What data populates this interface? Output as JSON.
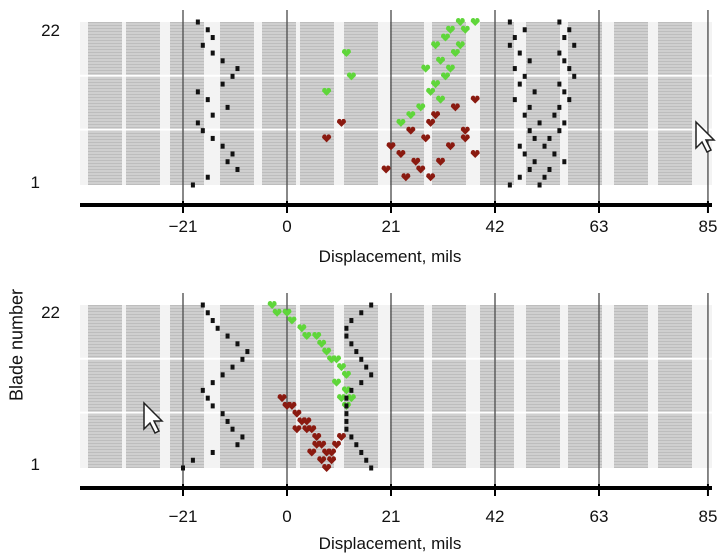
{
  "shared_ylabel": "Blade number",
  "colors": {
    "panel_fill": "#bdbdbd",
    "stripe": "#eeeeee",
    "grid_line": "#555555",
    "axis": "#000000",
    "black_series": "#111111",
    "green_series": "#5fd63a",
    "red_series": "#8a1a10"
  },
  "cursor_icon": "arrow-pointer-icon",
  "chart_data": [
    {
      "type": "scatter",
      "xlabel": "Displacement, mils",
      "ylabel": "Blade number",
      "xticks": [
        -21,
        0,
        21,
        42,
        63,
        85
      ],
      "yticks": [
        1,
        22
      ],
      "xlim": [
        -42,
        85
      ],
      "ylim": [
        1,
        22
      ],
      "grid": true,
      "series": [
        {
          "color": "black",
          "marker": "square",
          "points": [
            [
              -19,
              1
            ],
            [
              -16,
              2
            ],
            [
              -10,
              3
            ],
            [
              -12,
              4
            ],
            [
              -11,
              5
            ],
            [
              -13,
              6
            ],
            [
              -15,
              7
            ],
            [
              -17,
              8
            ],
            [
              -18,
              9
            ],
            [
              -15,
              10
            ],
            [
              -12,
              11
            ],
            [
              -16,
              12
            ],
            [
              -18,
              13
            ],
            [
              -13,
              14
            ],
            [
              -11,
              15
            ],
            [
              -10,
              16
            ],
            [
              -13,
              17
            ],
            [
              -15,
              18
            ],
            [
              -17,
              19
            ],
            [
              -15,
              20
            ],
            [
              -16,
              21
            ],
            [
              -18,
              22
            ]
          ]
        },
        {
          "color": "green",
          "marker": "heart",
          "points": [
            [
              35,
              22
            ],
            [
              38,
              22
            ],
            [
              33,
              21
            ],
            [
              36,
              21
            ],
            [
              32,
              20
            ],
            [
              35,
              19
            ],
            [
              30,
              19
            ],
            [
              34,
              18
            ],
            [
              31,
              17
            ],
            [
              33,
              16
            ],
            [
              28,
              16
            ],
            [
              32,
              15
            ],
            [
              30,
              14
            ],
            [
              29,
              13
            ],
            [
              31,
              12
            ],
            [
              27,
              11
            ],
            [
              25,
              10
            ],
            [
              23,
              9
            ]
          ]
        },
        {
          "color": "green",
          "marker": "heart",
          "points": [
            [
              12,
              18
            ],
            [
              13,
              15
            ],
            [
              8,
              13
            ]
          ]
        },
        {
          "color": "red",
          "marker": "heart",
          "points": [
            [
              11,
              9
            ],
            [
              8,
              7
            ],
            [
              30,
              10
            ],
            [
              34,
              11
            ],
            [
              38,
              12
            ],
            [
              29,
              9
            ],
            [
              36,
              8
            ],
            [
              25,
              8
            ],
            [
              28,
              7
            ],
            [
              33,
              6
            ],
            [
              21,
              6
            ],
            [
              23,
              5
            ],
            [
              26,
              4
            ],
            [
              31,
              4
            ],
            [
              27,
              3
            ],
            [
              20,
              3
            ],
            [
              24,
              2
            ],
            [
              29,
              2
            ],
            [
              36,
              7
            ],
            [
              38,
              5
            ]
          ]
        },
        {
          "color": "black",
          "marker": "square",
          "points": [
            [
              45,
              22
            ],
            [
              48,
              21
            ],
            [
              46,
              20
            ],
            [
              45,
              19
            ],
            [
              47,
              18
            ],
            [
              49,
              17
            ],
            [
              46,
              16
            ],
            [
              48,
              15
            ],
            [
              47,
              14
            ],
            [
              50,
              13
            ],
            [
              46,
              12
            ],
            [
              49,
              11
            ],
            [
              48,
              10
            ],
            [
              51,
              9
            ],
            [
              49,
              8
            ],
            [
              50,
              7
            ],
            [
              47,
              6
            ],
            [
              48,
              5
            ],
            [
              50,
              4
            ],
            [
              49,
              3
            ],
            [
              47,
              2
            ],
            [
              45,
              1
            ]
          ]
        },
        {
          "color": "black",
          "marker": "square",
          "points": [
            [
              55,
              22
            ],
            [
              57,
              21
            ],
            [
              56,
              20
            ],
            [
              58,
              19
            ],
            [
              55,
              18
            ],
            [
              56,
              17
            ],
            [
              57,
              16
            ],
            [
              58,
              15
            ],
            [
              55,
              14
            ],
            [
              56,
              13
            ],
            [
              57,
              12
            ],
            [
              55,
              11
            ],
            [
              54,
              10
            ],
            [
              56,
              9
            ],
            [
              55,
              8
            ],
            [
              53,
              7
            ],
            [
              52,
              6
            ],
            [
              54,
              5
            ],
            [
              56,
              4
            ],
            [
              53,
              3
            ],
            [
              52,
              2
            ],
            [
              51,
              1
            ]
          ]
        }
      ]
    },
    {
      "type": "scatter",
      "xlabel": "Displacement, mils",
      "ylabel": "Blade number",
      "xticks": [
        -21,
        0,
        21,
        42,
        63,
        85
      ],
      "yticks": [
        1,
        22
      ],
      "xlim": [
        -42,
        85
      ],
      "ylim": [
        1,
        22
      ],
      "grid": true,
      "series": [
        {
          "color": "black",
          "marker": "square",
          "points": [
            [
              -21,
              1
            ],
            [
              -19,
              2
            ],
            [
              -15,
              3
            ],
            [
              -10,
              4
            ],
            [
              -9,
              5
            ],
            [
              -11,
              6
            ],
            [
              -12,
              7
            ],
            [
              -13,
              8
            ],
            [
              -15,
              9
            ],
            [
              -16,
              10
            ],
            [
              -17,
              11
            ],
            [
              -15,
              12
            ],
            [
              -13,
              13
            ],
            [
              -11,
              14
            ],
            [
              -9,
              15
            ],
            [
              -8,
              16
            ],
            [
              -10,
              17
            ],
            [
              -12,
              18
            ],
            [
              -14,
              19
            ],
            [
              -15,
              20
            ],
            [
              -16,
              21
            ],
            [
              -17,
              22
            ]
          ]
        },
        {
          "color": "green",
          "marker": "heart",
          "points": [
            [
              -3,
              22
            ],
            [
              -2,
              21
            ],
            [
              0,
              21
            ],
            [
              1,
              20
            ],
            [
              3,
              19
            ],
            [
              4,
              18
            ],
            [
              6,
              18
            ],
            [
              7,
              17
            ],
            [
              8,
              16
            ],
            [
              9,
              15
            ],
            [
              10,
              15
            ],
            [
              11,
              14
            ],
            [
              12,
              13
            ],
            [
              10,
              12
            ],
            [
              12,
              11
            ],
            [
              11,
              10
            ],
            [
              13,
              10
            ],
            [
              12,
              9
            ]
          ]
        },
        {
          "color": "red",
          "marker": "heart",
          "points": [
            [
              -1,
              10
            ],
            [
              0,
              9
            ],
            [
              1,
              9
            ],
            [
              2,
              8
            ],
            [
              3,
              7
            ],
            [
              4,
              6
            ],
            [
              5,
              6
            ],
            [
              6,
              5
            ],
            [
              7,
              4
            ],
            [
              8,
              3
            ],
            [
              9,
              3
            ],
            [
              7,
              2
            ],
            [
              9,
              2
            ],
            [
              8,
              1
            ],
            [
              6,
              4
            ],
            [
              4,
              7
            ],
            [
              2,
              6
            ],
            [
              10,
              4
            ],
            [
              11,
              5
            ],
            [
              5,
              3
            ]
          ]
        },
        {
          "color": "black",
          "marker": "square",
          "points": [
            [
              17,
              22
            ],
            [
              15,
              21
            ],
            [
              13,
              20
            ],
            [
              12,
              19
            ],
            [
              12,
              18
            ],
            [
              13,
              17
            ],
            [
              14,
              16
            ],
            [
              15,
              15
            ],
            [
              16,
              14
            ],
            [
              17,
              13
            ],
            [
              15,
              12
            ],
            [
              13,
              11
            ],
            [
              12,
              10
            ],
            [
              12,
              9
            ],
            [
              12,
              8
            ],
            [
              12,
              7
            ],
            [
              12,
              6
            ],
            [
              13,
              5
            ],
            [
              14,
              4
            ],
            [
              15,
              3
            ],
            [
              16,
              2
            ],
            [
              17,
              1
            ]
          ]
        }
      ]
    }
  ]
}
